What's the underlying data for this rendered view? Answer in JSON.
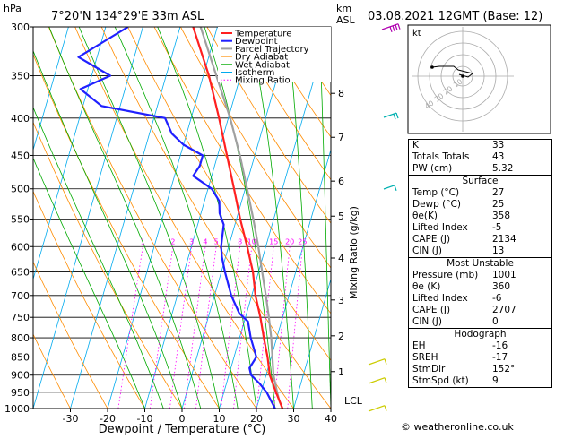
{
  "header": {
    "location": "7°20'N 134°29'E 33m ASL",
    "datetime": "03.08.2021 12GMT (Base: 12)",
    "hpa_label": "hPa",
    "km_label": "km",
    "asl_label": "ASL"
  },
  "chart_data": {
    "type": "line",
    "xlabel": "Dewpoint / Temperature (°C)",
    "ylabel_right": "Mixing Ratio (g/kg)",
    "xlim": [
      -40,
      40
    ],
    "ylim_hpa": [
      1000,
      300
    ],
    "x_ticks": [
      "-30",
      "-20",
      "-10",
      "0",
      "10",
      "20",
      "30",
      "40"
    ],
    "pressure_ticks": [
      "300",
      "350",
      "400",
      "450",
      "500",
      "550",
      "600",
      "650",
      "700",
      "750",
      "800",
      "850",
      "900",
      "950",
      "1000"
    ],
    "km_ticks": [
      {
        "km": "1",
        "p": 890
      },
      {
        "km": "2",
        "p": 795
      },
      {
        "km": "3",
        "p": 710
      },
      {
        "km": "4",
        "p": 622
      },
      {
        "km": "5",
        "p": 545
      },
      {
        "km": "6",
        "p": 488
      },
      {
        "km": "7",
        "p": 425
      },
      {
        "km": "8",
        "p": 370
      }
    ],
    "lcl_label": "LCL",
    "lcl_p": 975,
    "mixing_ratio_labels": [
      "1",
      "2",
      "3",
      "4",
      "5",
      "8",
      "10",
      "15",
      "20",
      "25"
    ],
    "mixing_ratios": [
      1,
      2,
      3,
      4,
      5,
      8,
      10,
      15,
      20,
      25
    ],
    "legend": [
      "Temperature",
      "Dewpoint",
      "Parcel Trajectory",
      "Dry Adiabat",
      "Wet Adiabat",
      "Isotherm",
      "Mixing Ratio"
    ],
    "colors": {
      "temperature": "#ff2020",
      "dewpoint": "#2020ff",
      "parcel": "#a0a0a0",
      "dry_adiabat": "#ff8c00",
      "wet_adiabat": "#00aa00",
      "isotherm": "#00aaee",
      "mixing_ratio": "#ff00ff",
      "wind_barb": "#00b0b0",
      "wind_barb_low": "#cccc00"
    },
    "series": [
      {
        "name": "Temperature",
        "points": [
          [
            1000,
            27
          ],
          [
            950,
            24
          ],
          [
            900,
            21
          ],
          [
            850,
            19
          ],
          [
            800,
            16.5
          ],
          [
            750,
            14
          ],
          [
            700,
            11
          ],
          [
            650,
            8.5
          ],
          [
            600,
            5
          ],
          [
            550,
            1
          ],
          [
            500,
            -3
          ],
          [
            450,
            -7.5
          ],
          [
            400,
            -12.5
          ],
          [
            350,
            -18.5
          ],
          [
            300,
            -26.5
          ]
        ]
      },
      {
        "name": "Dewpoint",
        "points": [
          [
            1000,
            25
          ],
          [
            950,
            21.5
          ],
          [
            925,
            19
          ],
          [
            900,
            16
          ],
          [
            880,
            15
          ],
          [
            850,
            16
          ],
          [
            800,
            13
          ],
          [
            760,
            11
          ],
          [
            740,
            8
          ],
          [
            700,
            4.5
          ],
          [
            650,
            1
          ],
          [
            620,
            -1
          ],
          [
            600,
            -2
          ],
          [
            580,
            -2.5
          ],
          [
            560,
            -3
          ],
          [
            540,
            -5
          ],
          [
            520,
            -6
          ],
          [
            500,
            -9
          ],
          [
            480,
            -15
          ],
          [
            465,
            -14
          ],
          [
            450,
            -14
          ],
          [
            435,
            -20
          ],
          [
            420,
            -24
          ],
          [
            400,
            -27
          ],
          [
            385,
            -45
          ],
          [
            365,
            -52
          ],
          [
            350,
            -45
          ],
          [
            330,
            -55
          ],
          [
            300,
            -44
          ]
        ]
      },
      {
        "name": "Parcel Trajectory",
        "points": [
          [
            1000,
            27
          ],
          [
            975,
            25.5
          ],
          [
            950,
            24.3
          ],
          [
            900,
            22
          ],
          [
            850,
            20.3
          ],
          [
            800,
            18.5
          ],
          [
            750,
            16.3
          ],
          [
            700,
            13.8
          ],
          [
            650,
            11
          ],
          [
            600,
            8
          ],
          [
            550,
            4.5
          ],
          [
            500,
            0.5
          ],
          [
            450,
            -4
          ],
          [
            400,
            -9.5
          ],
          [
            350,
            -16.5
          ],
          [
            300,
            -24.5
          ]
        ]
      }
    ]
  },
  "hodograph": {
    "title": "kt",
    "ring_labels": [
      "10",
      "20",
      "30",
      "40"
    ]
  },
  "indices": {
    "top": [
      {
        "k": "K",
        "v": "33"
      },
      {
        "k": "Totals Totals",
        "v": "43"
      },
      {
        "k": "PW (cm)",
        "v": "5.32"
      }
    ],
    "surface": {
      "title": "Surface",
      "rows": [
        {
          "k": "Temp (°C)",
          "v": "27"
        },
        {
          "k": "Dewp (°C)",
          "v": "25"
        },
        {
          "k": "θe(K)",
          "v": "358"
        },
        {
          "k": "Lifted Index",
          "v": "-5"
        },
        {
          "k": "CAPE (J)",
          "v": "2134"
        },
        {
          "k": "CIN (J)",
          "v": "13"
        }
      ]
    },
    "unstable": {
      "title": "Most Unstable",
      "rows": [
        {
          "k": "Pressure (mb)",
          "v": "1001"
        },
        {
          "k": "θe (K)",
          "v": "360"
        },
        {
          "k": "Lifted Index",
          "v": "-6"
        },
        {
          "k": "CAPE (J)",
          "v": "2707"
        },
        {
          "k": "CIN (J)",
          "v": "0"
        }
      ]
    },
    "hodo": {
      "title": "Hodograph",
      "rows": [
        {
          "k": "EH",
          "v": "-16"
        },
        {
          "k": "SREH",
          "v": "-17"
        },
        {
          "k": "StmDir",
          "v": "152°"
        },
        {
          "k": "StmSpd (kt)",
          "v": "9"
        }
      ]
    }
  },
  "footer": "© weatheronline.co.uk"
}
